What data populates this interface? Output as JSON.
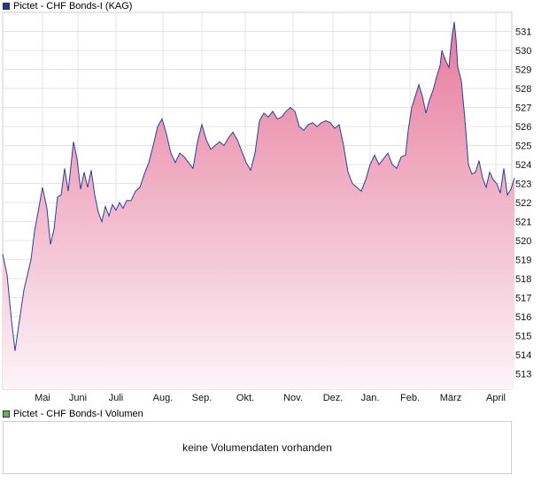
{
  "legend_price": {
    "label": "Pictet - CHF Bonds-I (KAG)",
    "color": "#1f3a93"
  },
  "legend_volume": {
    "label": "Pictet - CHF Bonds-I Volumen",
    "color": "#5cb85c"
  },
  "volume_message": "keine Volumendaten vorhanden",
  "chart_data": {
    "type": "area",
    "title": "",
    "xlabel": "",
    "ylabel": "",
    "ylim": [
      512.3,
      532.3
    ],
    "y_ticks": [
      513,
      514,
      515,
      516,
      517,
      518,
      519,
      520,
      521,
      522,
      523,
      524,
      525,
      526,
      527,
      528,
      529,
      530,
      531
    ],
    "x_ticks": [
      "Mai",
      "Juni",
      "Juli",
      "Aug.",
      "Sep.",
      "Okt.",
      "Nov.",
      "Dez.",
      "Jan.",
      "Feb.",
      "März",
      "April"
    ],
    "grid": true,
    "line_color": "#2b3f9a",
    "fill_top_color": "#e67a9c",
    "fill_bottom_color": "#fdf4f8",
    "series": [
      {
        "name": "Pictet - CHF Bonds-I (KAG)",
        "x": [
          0,
          5,
          10,
          14,
          18,
          24,
          28,
          32,
          36,
          40,
          45,
          50,
          54,
          58,
          62,
          66,
          70,
          74,
          80,
          84,
          88,
          92,
          96,
          100,
          104,
          108,
          112,
          116,
          120,
          124,
          128,
          132,
          136,
          140,
          145,
          150,
          155,
          160,
          165,
          170,
          175,
          180,
          185,
          190,
          195,
          200,
          205,
          210,
          215,
          220,
          225,
          230,
          235,
          240,
          245,
          250,
          255,
          260,
          265,
          270,
          275,
          280,
          285,
          290,
          295,
          300,
          305,
          310,
          315,
          320,
          325,
          330,
          335,
          340,
          345,
          350,
          355,
          360,
          365,
          370,
          375,
          380,
          385,
          390,
          395,
          400,
          405,
          410,
          415,
          420,
          425,
          430,
          435,
          440,
          445,
          450,
          455,
          458,
          462,
          466,
          470,
          474,
          478,
          482,
          486,
          490,
          494,
          496,
          500,
          504,
          506,
          508,
          510,
          512,
          514,
          518,
          522,
          526,
          530,
          534,
          538,
          542,
          546,
          550,
          554,
          558,
          562,
          566,
          570,
          574,
          578
        ],
        "values": [
          519.3,
          518.2,
          515.8,
          514.2,
          515.5,
          517.4,
          518.2,
          519.0,
          520.5,
          521.5,
          522.8,
          521.7,
          519.8,
          520.6,
          522.3,
          522.4,
          523.8,
          522.6,
          525.2,
          524.3,
          522.7,
          523.6,
          522.8,
          523.7,
          522.4,
          521.5,
          521.0,
          521.8,
          521.3,
          521.9,
          521.6,
          522.0,
          521.7,
          522.1,
          522.1,
          522.6,
          522.8,
          523.5,
          524.1,
          525.0,
          526.0,
          526.4,
          525.6,
          524.6,
          524.1,
          524.6,
          524.4,
          524.1,
          523.8,
          525.2,
          526.1,
          525.3,
          524.8,
          525.0,
          525.2,
          525.0,
          525.4,
          525.7,
          525.3,
          524.7,
          524.1,
          523.7,
          524.6,
          526.3,
          526.7,
          526.5,
          526.8,
          526.4,
          526.5,
          526.8,
          527.0,
          526.8,
          526.0,
          525.8,
          526.1,
          526.2,
          526.0,
          526.2,
          526.3,
          526.2,
          525.9,
          526.1,
          525.0,
          523.6,
          523.0,
          522.8,
          522.6,
          523.2,
          524.0,
          524.5,
          524.0,
          524.3,
          524.6,
          524.0,
          523.8,
          524.4,
          524.5,
          525.8,
          527.0,
          527.6,
          528.2,
          527.6,
          526.7,
          527.4,
          527.9,
          528.6,
          529.2,
          530.0,
          529.5,
          529.1,
          530.1,
          530.9,
          531.5,
          530.6,
          529.1,
          528.4,
          526.4,
          524.0,
          523.5,
          523.6,
          524.2,
          523.3,
          522.8,
          523.6,
          523.2,
          523.0,
          522.5,
          523.8,
          522.4,
          522.7,
          523.3
        ]
      }
    ]
  }
}
